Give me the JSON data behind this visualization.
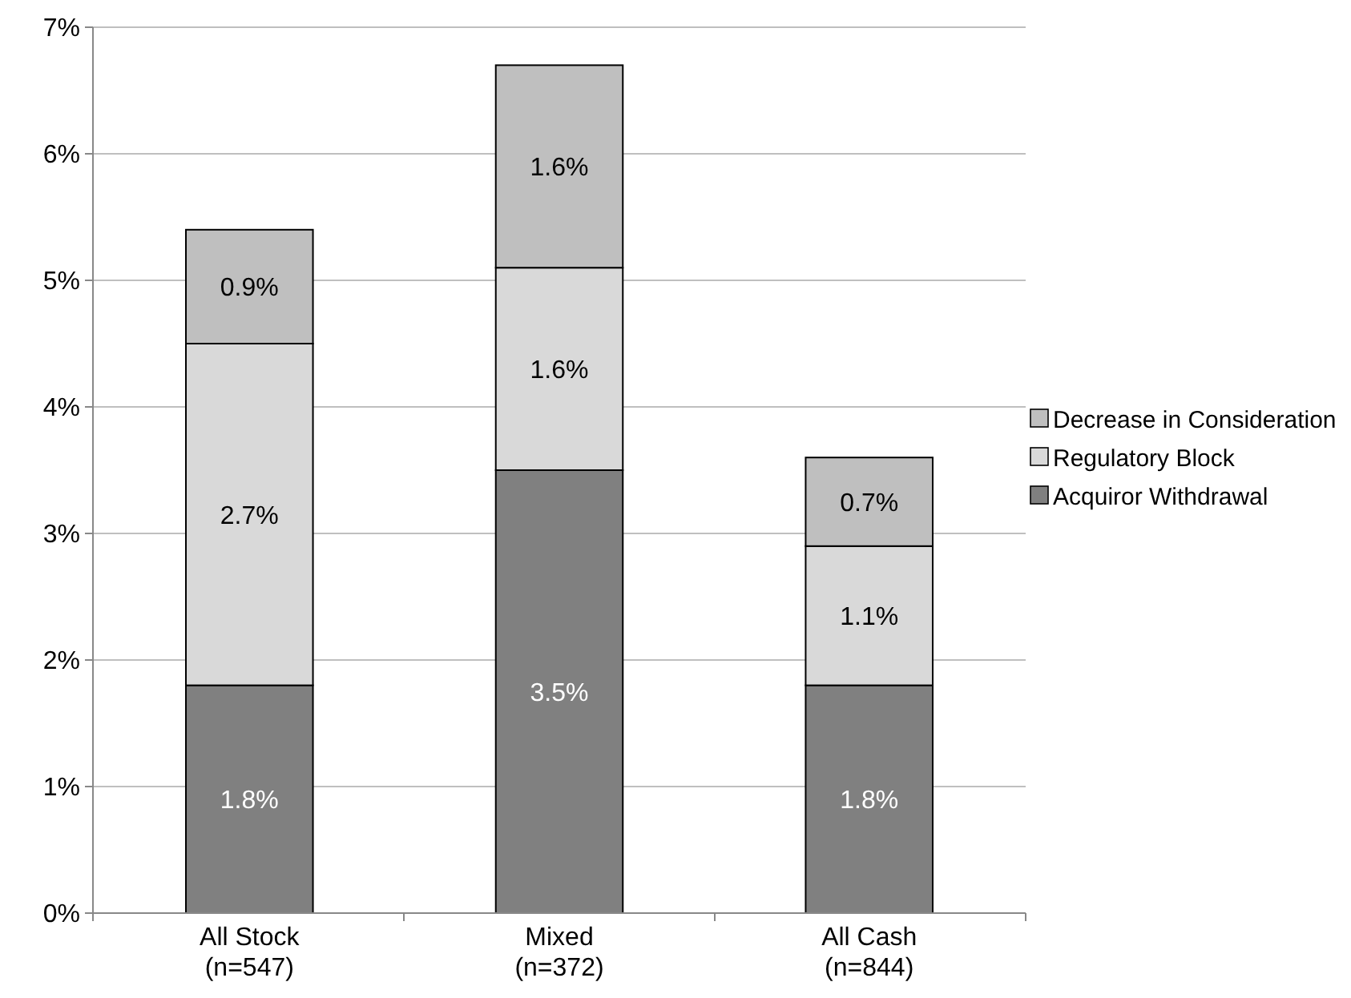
{
  "chart_data": {
    "type": "bar",
    "stacked": true,
    "categories": [
      "All Stock\n(n=547)",
      "Mixed\n(n=372)",
      "All Cash\n(n=844)"
    ],
    "series": [
      {
        "name": "Acquiror Withdrawal",
        "color": "#808080",
        "values": [
          1.8,
          3.5,
          1.8
        ],
        "value_labels": [
          "1.8%",
          "3.5%",
          "1.8%"
        ]
      },
      {
        "name": "Regulatory Block",
        "color": "#d9d9d9",
        "values": [
          2.7,
          1.6,
          1.1
        ],
        "value_labels": [
          "2.7%",
          "1.6%",
          "1.1%"
        ]
      },
      {
        "name": "Decrease in Consideration",
        "color": "#bfbfbf",
        "values": [
          0.9,
          1.6,
          0.7
        ],
        "value_labels": [
          "0.9%",
          "1.6%",
          "0.7%"
        ]
      }
    ],
    "ylim": [
      0,
      7
    ],
    "yticks": [
      {
        "value": 0,
        "label": "0%"
      },
      {
        "value": 1,
        "label": "1%"
      },
      {
        "value": 2,
        "label": "2%"
      },
      {
        "value": 3,
        "label": "3%"
      },
      {
        "value": 4,
        "label": "4%"
      },
      {
        "value": 5,
        "label": "5%"
      },
      {
        "value": 6,
        "label": "6%"
      },
      {
        "value": 7,
        "label": "7%"
      }
    ],
    "grid": "y",
    "legend": "right"
  }
}
